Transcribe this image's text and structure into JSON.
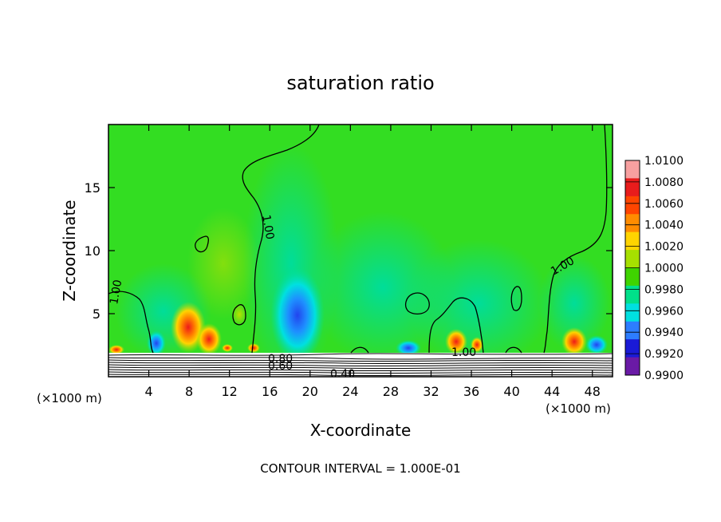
{
  "chart_data": {
    "type": "heatmap",
    "title": "saturation ratio",
    "xlabel": "X-coordinate",
    "ylabel": "Z-coordinate",
    "x_unit_left": "(×1000 m)",
    "x_unit_right": "(×1000 m)",
    "x_ticks": [
      "4",
      "8",
      "12",
      "16",
      "20",
      "24",
      "28",
      "32",
      "36",
      "40",
      "44",
      "48"
    ],
    "x_tick_values": [
      4,
      8,
      12,
      16,
      20,
      24,
      28,
      32,
      36,
      40,
      44,
      48
    ],
    "y_ticks": [
      "5",
      "10",
      "15"
    ],
    "y_tick_values": [
      5,
      10,
      15
    ],
    "xlim": [
      0,
      50
    ],
    "ylim": [
      0,
      20
    ],
    "colorbar": {
      "labels": [
        "1.0100",
        "1.0080",
        "1.0060",
        "1.0040",
        "1.0020",
        "1.0000",
        "0.9980",
        "0.9960",
        "0.9940",
        "0.9920",
        "0.9900"
      ],
      "colors": [
        "#f7a0a0",
        "#e81c1c",
        "#ff4500",
        "#ff8c00",
        "#ffd400",
        "#a6e000",
        "#3fd400",
        "#00e08a",
        "#00e0e0",
        "#2d7dff",
        "#1a1ad6",
        "#6a1aa6"
      ]
    },
    "contour_labels": [
      "1.00",
      "1.00",
      "1.00",
      "1.00",
      "0.80",
      "0.60",
      "0.40"
    ],
    "contour_interval_text": "CONTOUR INTERVAL = 1.000E-01",
    "colors": {
      "background_field": "#33dd22",
      "moist": "#00e080",
      "dry_core": "#2266ff",
      "peak": "#ee1a1a"
    }
  }
}
